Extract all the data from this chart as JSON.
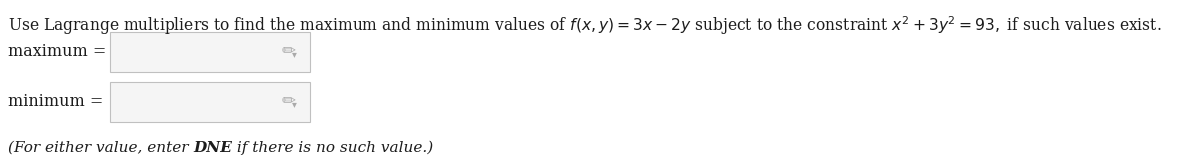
{
  "bg_color": "#ffffff",
  "text_color": "#1c1c1c",
  "label_color": "#2a2a2a",
  "box_edge_color": "#c0c0c0",
  "box_face_color": "#f5f5f5",
  "pencil_color": "#aaaaaa",
  "font_size_main": 11.2,
  "font_size_label": 11.5,
  "font_size_note": 11.0,
  "main_sentence_plain": "Use Lagrange multipliers to find the maximum and minimum values of ",
  "label_maximum": "maximum =",
  "label_minimum": "minimum =",
  "note_prefix": "(For either value, enter ",
  "note_bold": "DNE",
  "note_suffix": " if there is no such value.)"
}
